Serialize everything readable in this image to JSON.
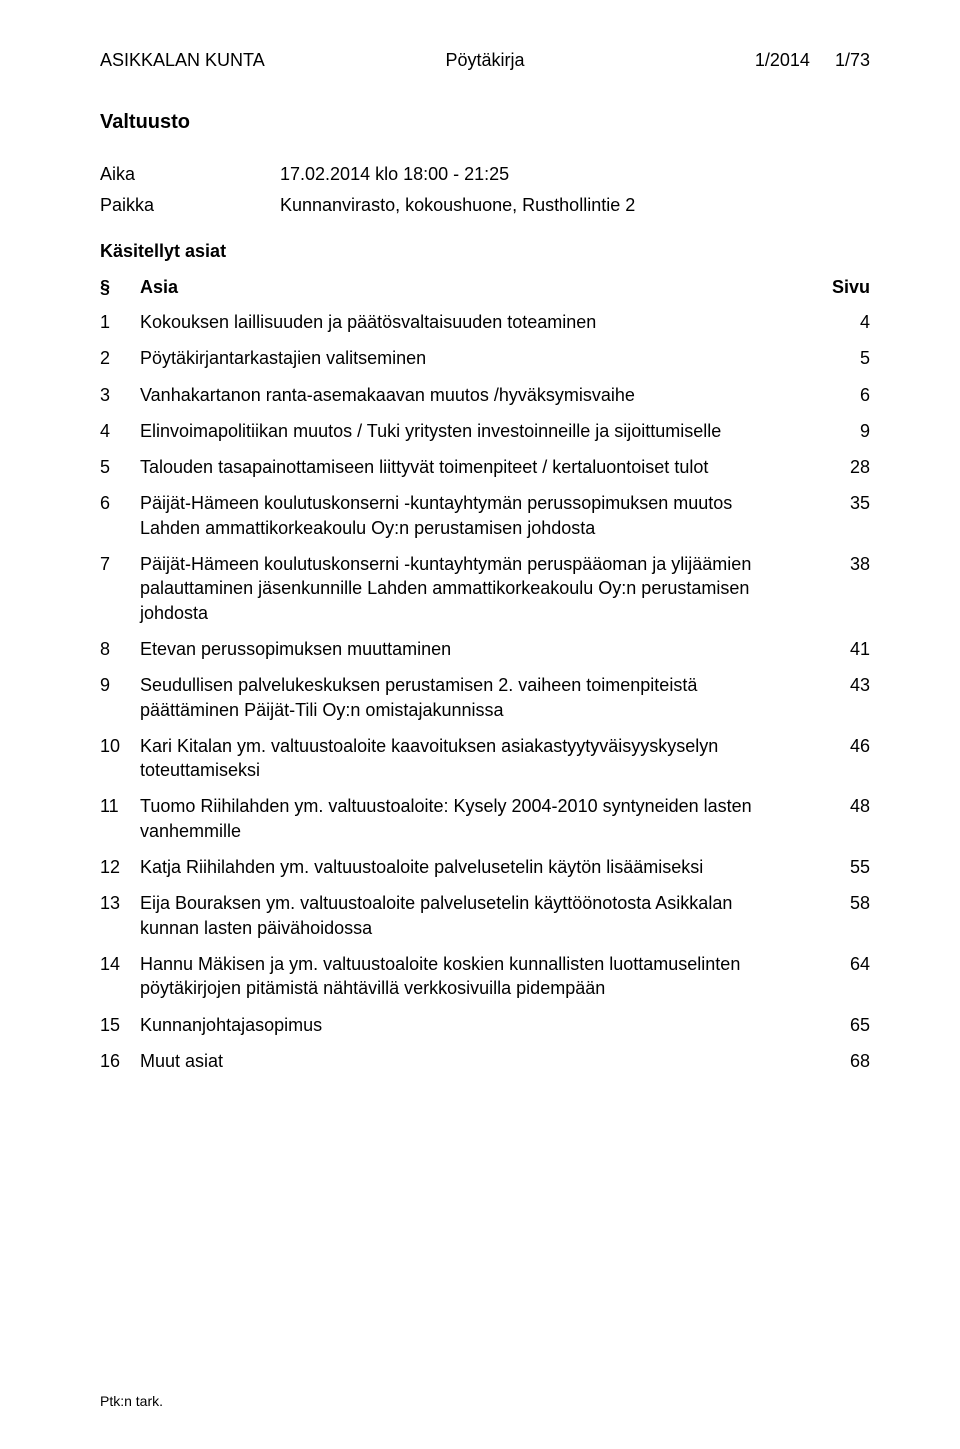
{
  "header": {
    "org": "ASIKKALAN KUNTA",
    "doc_type": "Pöytäkirja",
    "doc_num": "1/2014",
    "page_num": "1/73"
  },
  "body_title": "Valtuusto",
  "meta": {
    "aika_label": "Aika",
    "aika_value": "17.02.2014 klo 18:00 - 21:25",
    "paikka_label": "Paikka",
    "paikka_value": "Kunnanvirasto, kokoushuone, Rusthollintie 2"
  },
  "subheading": "Käsitellyt asiat",
  "toc_header": {
    "num": "§",
    "asia": "Asia",
    "sivu": "Sivu"
  },
  "toc": [
    {
      "n": "1",
      "t": "Kokouksen laillisuuden ja päätösvaltaisuuden toteaminen",
      "p": "4"
    },
    {
      "n": "2",
      "t": "Pöytäkirjantarkastajien valitseminen",
      "p": "5"
    },
    {
      "n": "3",
      "t": "Vanhakartanon ranta-asemakaavan muutos /hyväksymisvaihe",
      "p": "6"
    },
    {
      "n": "4",
      "t": "Elinvoimapolitiikan muutos / Tuki yritysten investoinneille ja sijoittumiselle",
      "p": "9"
    },
    {
      "n": "5",
      "t": "Talouden tasapainottamiseen liittyvät toimenpiteet / kertaluontoiset tulot",
      "p": "28"
    },
    {
      "n": "6",
      "t": "Päijät-Hämeen koulutuskonserni -kuntayhtymän perussopimuksen muutos Lahden ammattikorkeakoulu Oy:n perustamisen johdosta",
      "p": "35"
    },
    {
      "n": "7",
      "t": "Päijät-Hämeen koulutuskonserni -kuntayhtymän peruspääoman ja ylijäämien palauttaminen jäsenkunnille Lahden ammattikorkeakoulu Oy:n perustamisen johdosta",
      "p": "38"
    },
    {
      "n": "8",
      "t": "Etevan perussopimuksen muuttaminen",
      "p": "41"
    },
    {
      "n": "9",
      "t": "Seudullisen palvelukeskuksen perustamisen 2. vaiheen toimenpiteistä päättäminen Päijät-Tili Oy:n omistajakunnissa",
      "p": "43"
    },
    {
      "n": "10",
      "t": "Kari Kitalan ym. valtuustoaloite kaavoituksen asiakastyytyväisyyskyselyn toteuttamiseksi",
      "p": "46"
    },
    {
      "n": "11",
      "t": "Tuomo Riihilahden ym. valtuustoaloite: Kysely 2004-2010 syntyneiden lasten vanhemmille",
      "p": "48"
    },
    {
      "n": "12",
      "t": "Katja Riihilahden ym. valtuustoaloite palvelusetelin käytön lisäämiseksi",
      "p": "55"
    },
    {
      "n": "13",
      "t": "Eija Bouraksen ym. valtuustoaloite palvelusetelin käyttöönotosta Asikkalan kunnan lasten päivähoidossa",
      "p": "58"
    },
    {
      "n": "14",
      "t": "Hannu Mäkisen ja  ym. valtuustoaloite koskien kunnallisten luottamuselinten pöytäkirjojen pitämistä nähtävillä verkkosivuilla pidempään",
      "p": "64"
    },
    {
      "n": "15",
      "t": "Kunnanjohtajasopimus",
      "p": "65"
    },
    {
      "n": "16",
      "t": "Muut asiat",
      "p": "68"
    }
  ],
  "footer": "Ptk:n tark."
}
